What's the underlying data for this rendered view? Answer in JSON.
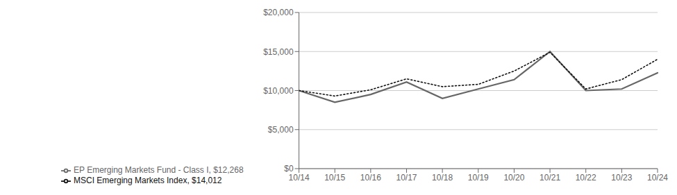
{
  "chart_data": {
    "type": "line",
    "categories": [
      "10/14",
      "10/15",
      "10/16",
      "10/17",
      "10/18",
      "10/19",
      "10/20",
      "10/21",
      "10/22",
      "10/23",
      "10/24"
    ],
    "series": [
      {
        "name": "EP Emerging Markets Fund - Class I, $12,268",
        "color": "#666666",
        "line_style": "solid",
        "values": [
          10000,
          8500,
          9500,
          11100,
          9000,
          10200,
          11400,
          15000,
          10000,
          10200,
          12268
        ]
      },
      {
        "name": "MSCI Emerging Markets Index, $14,012",
        "color": "#111111",
        "line_style": "dotted",
        "values": [
          10000,
          9300,
          10100,
          11500,
          10500,
          10800,
          12500,
          14900,
          10200,
          11400,
          14012
        ]
      }
    ],
    "ylim": [
      0,
      20000
    ],
    "yticks": [
      {
        "value": 0,
        "label": "$0"
      },
      {
        "value": 5000,
        "label": "$5,000"
      },
      {
        "value": 10000,
        "label": "$10,000"
      },
      {
        "value": 15000,
        "label": "$15,000"
      },
      {
        "value": 20000,
        "label": "$20,000"
      }
    ],
    "grid": true,
    "legend": "lower left"
  }
}
